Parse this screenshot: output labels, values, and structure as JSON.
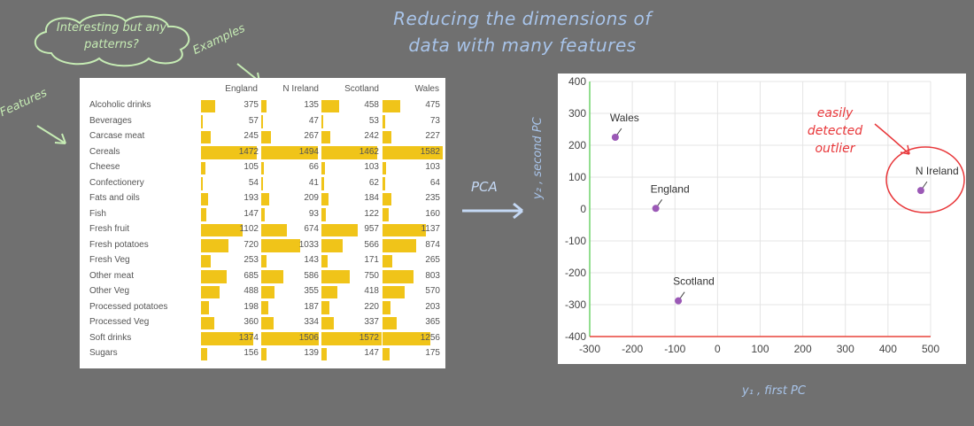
{
  "title": {
    "line1": "Reducing the dimensions of",
    "line2": "data with many features"
  },
  "annotations": {
    "cloud_line1": "Interesting but any",
    "cloud_line2": "patterns?",
    "examples": "Examples",
    "features": "Features",
    "pca": "PCA",
    "outlier_line1": "easily",
    "outlier_line2": "detected",
    "outlier_line3": "outlier"
  },
  "colors": {
    "bar": "#f0c419",
    "point": "#9b59b6",
    "outlier_circle": "#e8373a",
    "annotation_green": "#c6ecb4",
    "annotation_blue": "#a8c4ea"
  },
  "table": {
    "columns": [
      "England",
      "N Ireland",
      "Scotland",
      "Wales"
    ],
    "max": 1582,
    "rows": [
      {
        "label": "Alcoholic drinks",
        "values": [
          375,
          135,
          458,
          475
        ]
      },
      {
        "label": "Beverages",
        "values": [
          57,
          47,
          53,
          73
        ]
      },
      {
        "label": "Carcase meat",
        "values": [
          245,
          267,
          242,
          227
        ]
      },
      {
        "label": "Cereals",
        "values": [
          1472,
          1494,
          1462,
          1582
        ]
      },
      {
        "label": "Cheese",
        "values": [
          105,
          66,
          103,
          103
        ]
      },
      {
        "label": "Confectionery",
        "values": [
          54,
          41,
          62,
          64
        ]
      },
      {
        "label": "Fats and oils",
        "values": [
          193,
          209,
          184,
          235
        ]
      },
      {
        "label": "Fish",
        "values": [
          147,
          93,
          122,
          160
        ]
      },
      {
        "label": "Fresh fruit",
        "values": [
          1102,
          674,
          957,
          1137
        ]
      },
      {
        "label": "Fresh potatoes",
        "values": [
          720,
          1033,
          566,
          874
        ]
      },
      {
        "label": "Fresh Veg",
        "values": [
          253,
          143,
          171,
          265
        ]
      },
      {
        "label": "Other meat",
        "values": [
          685,
          586,
          750,
          803
        ]
      },
      {
        "label": "Other Veg",
        "values": [
          488,
          355,
          418,
          570
        ]
      },
      {
        "label": "Processed potatoes",
        "values": [
          198,
          187,
          220,
          203
        ]
      },
      {
        "label": "Processed Veg",
        "values": [
          360,
          334,
          337,
          365
        ]
      },
      {
        "label": "Soft drinks",
        "values": [
          1374,
          1506,
          1572,
          1256
        ]
      },
      {
        "label": "Sugars",
        "values": [
          156,
          139,
          147,
          175
        ]
      }
    ]
  },
  "chart_data": {
    "type": "scatter",
    "title": "",
    "xlabel": "y₁ , first PC",
    "ylabel": "y₂ , second PC",
    "xlim": [
      -300,
      500
    ],
    "ylim": [
      -400,
      400
    ],
    "xticks": [
      "-300",
      "-200",
      "-100",
      "0",
      "100",
      "200",
      "300",
      "400",
      "500"
    ],
    "yticks": [
      "400",
      "300",
      "200",
      "100",
      "0",
      "-100",
      "-200",
      "-300",
      "-400"
    ],
    "grid": true,
    "points": [
      {
        "label": "Wales",
        "x": -240,
        "y": 225
      },
      {
        "label": "England",
        "x": -145,
        "y": 2
      },
      {
        "label": "Scotland",
        "x": -92,
        "y": -288
      },
      {
        "label": "N Ireland",
        "x": 477,
        "y": 58
      }
    ]
  }
}
